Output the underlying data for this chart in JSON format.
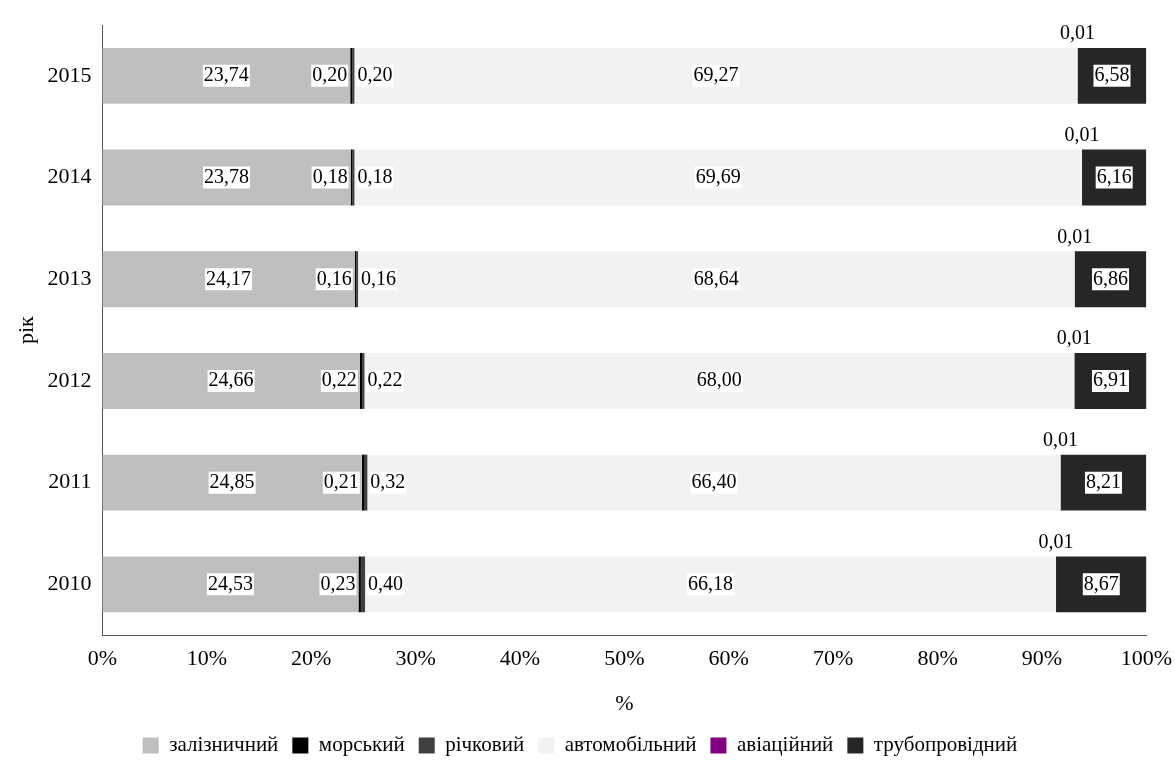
{
  "chart_data": {
    "type": "bar",
    "orientation": "horizontal",
    "stacked": true,
    "xlabel": "%",
    "ylabel": "рік",
    "categories": [
      "2015",
      "2014",
      "2013",
      "2012",
      "2011",
      "2010"
    ],
    "xlim": [
      0,
      100
    ],
    "xticks": [
      {
        "value": 0,
        "label": "0%"
      },
      {
        "value": 10,
        "label": "10%"
      },
      {
        "value": 20,
        "label": "20%"
      },
      {
        "value": 30,
        "label": "30%"
      },
      {
        "value": 40,
        "label": "40%"
      },
      {
        "value": 50,
        "label": "50%"
      },
      {
        "value": 60,
        "label": "60%"
      },
      {
        "value": 70,
        "label": "70%"
      },
      {
        "value": 80,
        "label": "80%"
      },
      {
        "value": 90,
        "label": "90%"
      },
      {
        "value": 100,
        "label": "100%"
      }
    ],
    "grid": false,
    "legend": "bottom",
    "series": [
      {
        "name": "залізничний",
        "color": "#bfbfbf",
        "values": [
          23.74,
          23.78,
          24.17,
          24.66,
          24.85,
          24.53
        ],
        "value_labels": [
          "23,74",
          "23,78",
          "24,17",
          "24,66",
          "24,85",
          "24,53"
        ]
      },
      {
        "name": "морський",
        "color": "#000000",
        "values": [
          0.2,
          0.18,
          0.16,
          0.22,
          0.21,
          0.23
        ],
        "value_labels": [
          "0,20",
          "0,18",
          "0,16",
          "0,22",
          "0,21",
          "0,23"
        ]
      },
      {
        "name": "річковий",
        "color": "#404040",
        "values": [
          0.2,
          0.18,
          0.16,
          0.22,
          0.32,
          0.4
        ],
        "value_labels": [
          "0,20",
          "0,18",
          "0,16",
          "0,22",
          "0,32",
          "0,40"
        ]
      },
      {
        "name": "автомобільний",
        "color": "#f2f2f2",
        "values": [
          69.27,
          69.69,
          68.64,
          68.0,
          66.4,
          66.18
        ],
        "value_labels": [
          "69,27",
          "69,69",
          "68,64",
          "68,00",
          "66,40",
          "66,18"
        ]
      },
      {
        "name": "авіаційний",
        "color": "#800080",
        "values": [
          0.01,
          0.01,
          0.01,
          0.01,
          0.01,
          0.01
        ],
        "value_labels": [
          "0,01",
          "0,01",
          "0,01",
          "0,01",
          "0,01",
          "0,01"
        ]
      },
      {
        "name": "трубопровідний",
        "color": "#262626",
        "values": [
          6.58,
          6.16,
          6.86,
          6.91,
          8.21,
          8.67
        ],
        "value_labels": [
          "6,58",
          "6,16",
          "6,86",
          "6,91",
          "8,21",
          "8,67"
        ]
      }
    ]
  }
}
